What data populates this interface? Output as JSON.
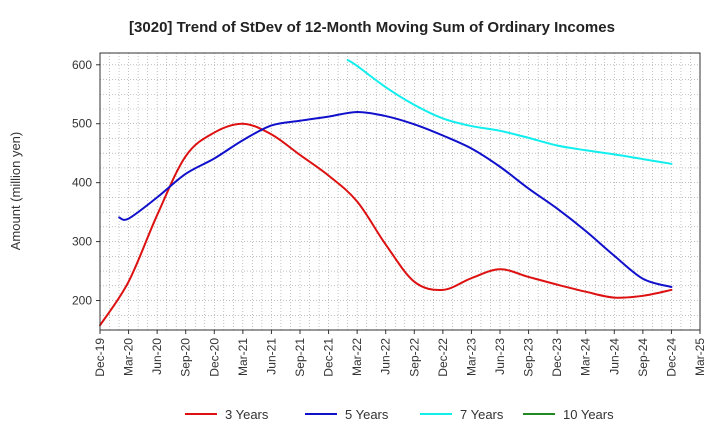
{
  "chart_data": {
    "type": "line",
    "title": "[3020]  Trend of StDev of 12-Month Moving Sum of Ordinary Incomes",
    "xlabel": "",
    "ylabel": "Amount (million yen)",
    "ylim": [
      150,
      620
    ],
    "yticks": [
      200,
      300,
      400,
      500,
      600
    ],
    "grid": true,
    "legend_position": "bottom",
    "x_ticks": [
      "Dec-19",
      "Mar-20",
      "Jun-20",
      "Sep-20",
      "Dec-20",
      "Mar-21",
      "Jun-21",
      "Sep-21",
      "Dec-21",
      "Mar-22",
      "Jun-22",
      "Sep-22",
      "Dec-22",
      "Mar-23",
      "Jun-23",
      "Sep-23",
      "Dec-23",
      "Mar-24",
      "Jun-24",
      "Sep-24",
      "Dec-24",
      "Mar-25"
    ],
    "series": [
      {
        "name": "3 Years",
        "color": "#dd1111",
        "points": [
          [
            0,
            158
          ],
          [
            1,
            232
          ],
          [
            2,
            345
          ],
          [
            3,
            445
          ],
          [
            4,
            485
          ],
          [
            5,
            500
          ],
          [
            6,
            482
          ],
          [
            7,
            447
          ],
          [
            8,
            412
          ],
          [
            9,
            368
          ],
          [
            10,
            295
          ],
          [
            11,
            232
          ],
          [
            12,
            218
          ],
          [
            13,
            238
          ],
          [
            14,
            253
          ],
          [
            15,
            240
          ],
          [
            16,
            227
          ],
          [
            17,
            215
          ],
          [
            18,
            205
          ],
          [
            19,
            208
          ],
          [
            20,
            218
          ]
        ]
      },
      {
        "name": "5 Years",
        "color": "#1111cc",
        "points": [
          [
            0.67,
            341
          ],
          [
            1,
            339
          ],
          [
            2,
            375
          ],
          [
            3,
            415
          ],
          [
            4,
            441
          ],
          [
            5,
            472
          ],
          [
            6,
            497
          ],
          [
            7,
            505
          ],
          [
            8,
            512
          ],
          [
            9,
            520
          ],
          [
            10,
            513
          ],
          [
            11,
            499
          ],
          [
            12,
            480
          ],
          [
            13,
            458
          ],
          [
            14,
            427
          ],
          [
            15,
            390
          ],
          [
            16,
            356
          ],
          [
            17,
            318
          ],
          [
            18,
            276
          ],
          [
            19,
            237
          ],
          [
            20,
            223
          ]
        ]
      },
      {
        "name": "7 Years",
        "color": "#11eeee",
        "points": [
          [
            8.67,
            608
          ],
          [
            9,
            598
          ],
          [
            10,
            562
          ],
          [
            11,
            532
          ],
          [
            12,
            509
          ],
          [
            13,
            496
          ],
          [
            14,
            488
          ],
          [
            15,
            476
          ],
          [
            16,
            463
          ],
          [
            17,
            455
          ],
          [
            18,
            448
          ],
          [
            19,
            440
          ],
          [
            20,
            432
          ]
        ]
      },
      {
        "name": "10 Years",
        "color": "#228822",
        "points": []
      }
    ]
  }
}
